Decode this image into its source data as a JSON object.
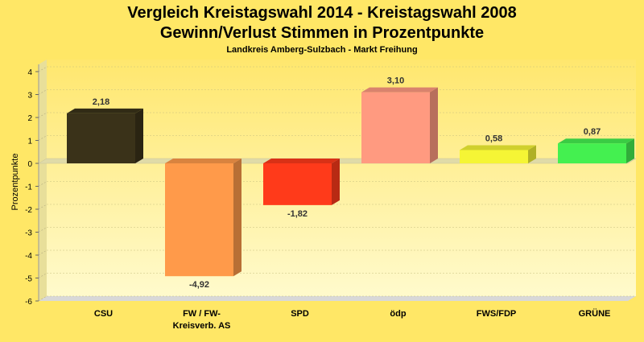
{
  "chart_data": {
    "type": "bar",
    "title_line1": "Vergleich Kreistagswahl 2014 - Kreistagswahl 2008",
    "title_line2": "Gewinn/Verlust Stimmen in Prozentpunkte",
    "subtitle": "Landkreis Amberg-Sulzbach - Markt Freihung",
    "ylabel": "Prozentpunkte",
    "xlabel": "",
    "ylim": [
      -6,
      4
    ],
    "yticks": [
      "4",
      "3",
      "2",
      "1",
      "0",
      "-1",
      "-2",
      "-3",
      "-4",
      "-5",
      "-6"
    ],
    "grid": true,
    "bars": [
      {
        "category_line1": "CSU",
        "category_line2": "",
        "value": 2.18,
        "label": "2,18",
        "color": "#3a3219"
      },
      {
        "category_line1": "FW / FW-",
        "category_line2": "Kreisverb. AS",
        "value": -4.92,
        "label": "-4,92",
        "color": "#ff9a4a"
      },
      {
        "category_line1": "SPD",
        "category_line2": "",
        "value": -1.82,
        "label": "-1,82",
        "color": "#ff3a1a"
      },
      {
        "category_line1": "ödp",
        "category_line2": "",
        "value": 3.1,
        "label": "3,10",
        "color": "#ff9a80"
      },
      {
        "category_line1": "FWS/FDP",
        "category_line2": "",
        "value": 0.58,
        "label": "0,58",
        "color": "#f5f535"
      },
      {
        "category_line1": "GRÜNE",
        "category_line2": "",
        "value": 0.87,
        "label": "0,87",
        "color": "#44f050"
      }
    ]
  }
}
